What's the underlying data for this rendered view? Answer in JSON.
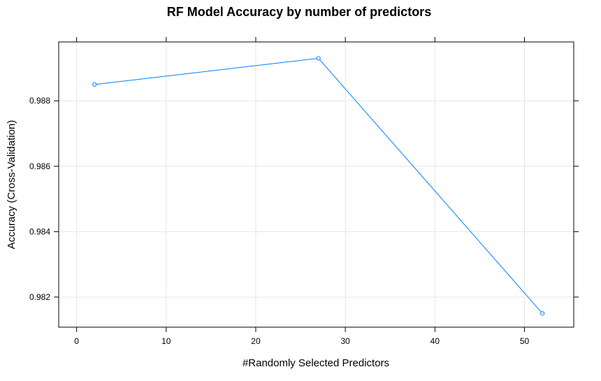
{
  "chart_data": {
    "type": "line",
    "title": "RF Model Accuracy by number of predictors",
    "xlabel": "#Randomly Selected Predictors",
    "ylabel": "Accuracy (Cross-Validation)",
    "x_ticks": [
      0,
      10,
      20,
      30,
      40,
      50
    ],
    "y_ticks": [
      0.982,
      0.984,
      0.986,
      0.988
    ],
    "xlim": [
      -2,
      55.5
    ],
    "ylim": [
      0.98108,
      0.9898
    ],
    "grid": true,
    "series": [
      {
        "x": [
          2,
          27,
          52
        ],
        "y": [
          0.9885,
          0.9893,
          0.9815
        ],
        "color": "#0080ff",
        "marker": "open-circle"
      }
    ]
  }
}
